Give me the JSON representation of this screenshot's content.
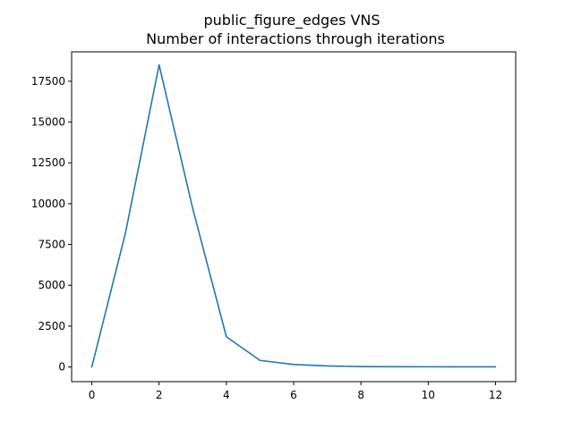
{
  "chart_data": {
    "type": "line",
    "title": "public_figure_edges VNS",
    "subtitle": "Number of interactions through iterations",
    "xlabel": "",
    "ylabel": "",
    "xlim": [
      -0.6,
      12.6
    ],
    "ylim": [
      -900,
      19300
    ],
    "xticks": [
      0,
      2,
      4,
      6,
      8,
      10,
      12
    ],
    "yticks": [
      0,
      2500,
      5000,
      7500,
      10000,
      12500,
      15000,
      17500
    ],
    "grid": false,
    "legend": "none",
    "series": [
      {
        "color": "#1f77b4",
        "x": [
          0,
          1,
          2,
          3,
          4,
          5,
          6,
          7,
          8,
          9,
          10,
          11,
          12
        ],
        "y": [
          0,
          8200,
          18500,
          9700,
          1850,
          400,
          150,
          60,
          20,
          15,
          10,
          5,
          5
        ]
      }
    ]
  }
}
